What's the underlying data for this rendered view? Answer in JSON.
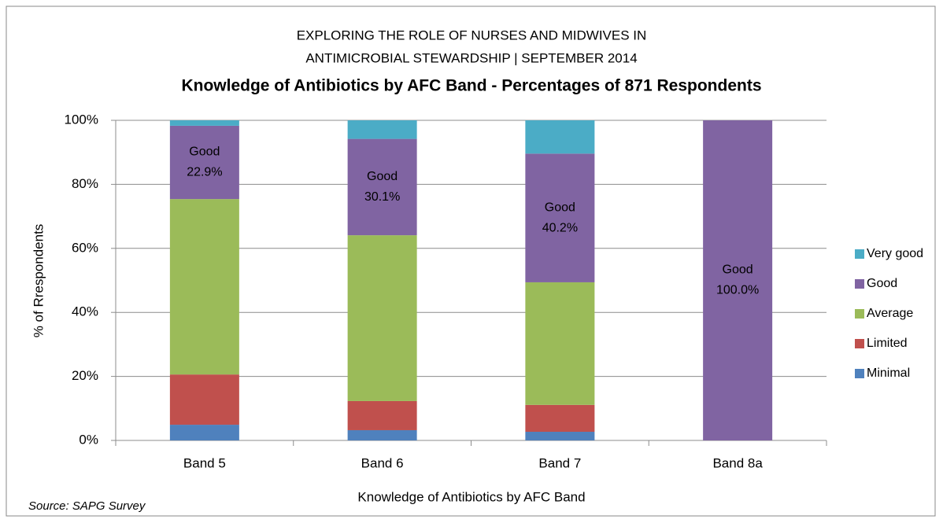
{
  "chart_data": {
    "type": "stacked_bar",
    "title_lines": [
      "EXPLORING THE ROLE OF NURSES AND MIDWIVES IN",
      "ANTIMICROBIAL STEWARDSHIP | SEPTEMBER 2014"
    ],
    "subtitle": "Knowledge of Antibiotics  by AFC Band - Percentages of 871 Respondents",
    "x_label": "Knowledge of Antibiotics by AFC Band",
    "y_label": "% of Rrespondents",
    "source": "Source: SAPG Survey",
    "categories": [
      "Band 5",
      "Band 6",
      "Band 7",
      "Band 8a"
    ],
    "series": [
      {
        "name": "Minimal",
        "color": "#4f81bd",
        "values": [
          4.9,
          3.2,
          2.7,
          0
        ]
      },
      {
        "name": "Limited",
        "color": "#c0504d",
        "values": [
          15.7,
          9.1,
          8.4,
          0
        ]
      },
      {
        "name": "Average",
        "color": "#9bbb59",
        "values": [
          54.8,
          51.8,
          38.3,
          0
        ]
      },
      {
        "name": "Good",
        "color": "#8064a2",
        "values": [
          22.9,
          30.1,
          40.2,
          100
        ],
        "value_labels": [
          "22.9%",
          "30.1%",
          "40.2%",
          "100.0%"
        ]
      },
      {
        "name": "Very good",
        "color": "#4bacc6",
        "values": [
          1.7,
          5.8,
          10.4,
          0
        ]
      }
    ],
    "ylim": [
      0,
      100
    ],
    "yticks": [
      {
        "value": 0,
        "label": "0%"
      },
      {
        "value": 20,
        "label": "20%"
      },
      {
        "value": 40,
        "label": "40%"
      },
      {
        "value": 60,
        "label": "60%"
      },
      {
        "value": 80,
        "label": "80%"
      },
      {
        "value": 100,
        "label": "100%"
      }
    ],
    "grid": true,
    "legend": "right"
  }
}
